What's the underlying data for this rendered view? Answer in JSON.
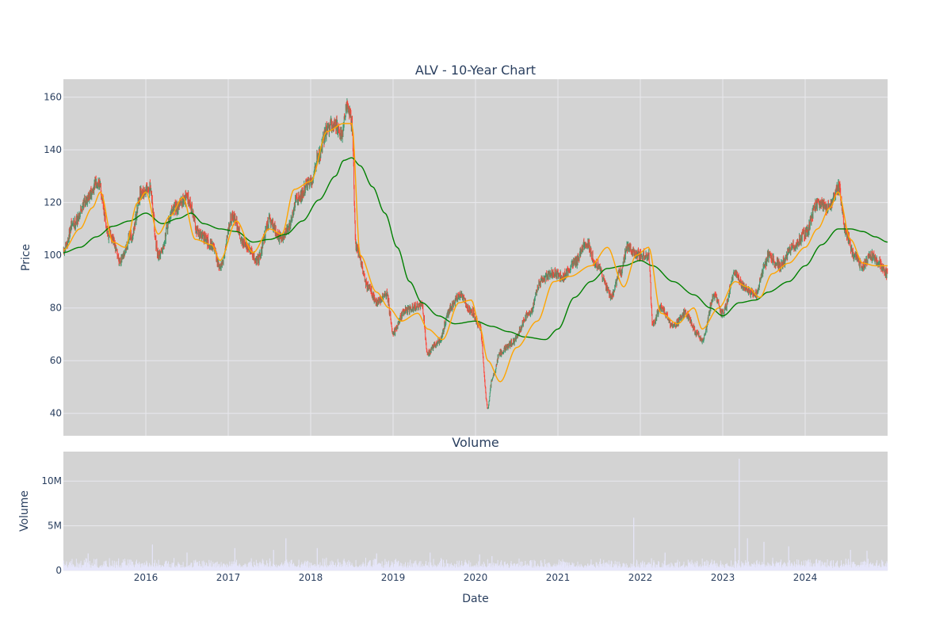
{
  "chart_data": [
    {
      "type": "candlestick",
      "title": "ALV - 10-Year Chart",
      "ylabel": "Price",
      "xlabel": "",
      "ylim": [
        31.5,
        166.8
      ],
      "xlim": [
        2015.0,
        2025.0
      ],
      "yticks": [
        40,
        60,
        80,
        100,
        120,
        140,
        160
      ],
      "x_tick_values": [
        2016,
        2017,
        2018,
        2019,
        2020,
        2021,
        2022,
        2023,
        2024
      ],
      "grid": true,
      "legend": "none",
      "price_anchors": {
        "x": [
          2015.0,
          2015.12,
          2015.3,
          2015.42,
          2015.55,
          2015.7,
          2015.82,
          2015.95,
          2016.05,
          2016.15,
          2016.35,
          2016.5,
          2016.65,
          2016.8,
          2016.9,
          2017.05,
          2017.2,
          2017.35,
          2017.5,
          2017.65,
          2017.72,
          2017.85,
          2018.0,
          2018.1,
          2018.2,
          2018.3,
          2018.38,
          2018.45,
          2018.5,
          2018.55,
          2018.7,
          2018.8,
          2018.92,
          2019.0,
          2019.15,
          2019.35,
          2019.42,
          2019.55,
          2019.7,
          2019.8,
          2019.95,
          2020.05,
          2020.15,
          2020.2,
          2020.3,
          2020.45,
          2020.65,
          2020.8,
          2020.9,
          2021.05,
          2021.2,
          2021.35,
          2021.45,
          2021.65,
          2021.75,
          2021.85,
          2021.95,
          2022.1,
          2022.15,
          2022.25,
          2022.4,
          2022.55,
          2022.7,
          2022.75,
          2022.9,
          2023.0,
          2023.15,
          2023.25,
          2023.4,
          2023.5,
          2023.55,
          2023.7,
          2023.85,
          2024.0,
          2024.15,
          2024.3,
          2024.4,
          2024.5,
          2024.6,
          2024.7,
          2024.8,
          2024.9,
          2025.0
        ],
        "y": [
          101,
          112,
          122,
          128,
          108,
          98,
          107,
          124,
          125,
          100,
          118,
          122,
          108,
          104,
          95,
          115,
          104,
          98,
          113,
          106,
          110,
          122,
          128,
          138,
          148,
          150,
          146,
          157,
          150,
          103,
          88,
          82,
          85,
          71,
          79,
          81,
          63,
          67,
          80,
          85,
          79,
          73,
          42,
          53,
          63,
          67,
          78,
          90,
          93,
          92,
          97,
          105,
          97,
          85,
          93,
          103,
          100,
          100,
          74,
          80,
          73,
          78,
          70,
          68,
          85,
          78,
          93,
          88,
          85,
          95,
          100,
          96,
          103,
          108,
          120,
          118,
          126,
          108,
          99,
          96,
          100,
          97,
          93
        ]
      },
      "ma_short_anchors": {
        "x": [
          2015.0,
          2015.2,
          2015.35,
          2015.45,
          2015.6,
          2015.75,
          2015.9,
          2016.0,
          2016.15,
          2016.3,
          2016.45,
          2016.6,
          2016.8,
          2016.9,
          2017.1,
          2017.3,
          2017.5,
          2017.65,
          2017.8,
          2018.0,
          2018.2,
          2018.4,
          2018.5,
          2018.6,
          2018.8,
          2018.95,
          2019.1,
          2019.3,
          2019.42,
          2019.6,
          2019.8,
          2019.95,
          2020.05,
          2020.15,
          2020.3,
          2020.5,
          2020.75,
          2020.95,
          2021.15,
          2021.4,
          2021.6,
          2021.8,
          2021.95,
          2022.1,
          2022.25,
          2022.45,
          2022.65,
          2022.75,
          2022.95,
          2023.15,
          2023.3,
          2023.45,
          2023.6,
          2023.8,
          2024.0,
          2024.15,
          2024.3,
          2024.4,
          2024.55,
          2024.7,
          2024.85,
          2025.0
        ],
        "y": [
          102,
          110,
          118,
          124,
          105,
          103,
          120,
          124,
          108,
          115,
          122,
          106,
          104,
          98,
          113,
          101,
          110,
          108,
          125,
          128,
          147,
          150,
          150,
          100,
          86,
          80,
          75,
          78,
          72,
          68,
          82,
          83,
          73,
          60,
          52,
          65,
          75,
          90,
          92,
          96,
          103,
          88,
          100,
          103,
          78,
          74,
          80,
          72,
          80,
          90,
          88,
          84,
          93,
          97,
          103,
          110,
          118,
          124,
          106,
          97,
          96,
          96
        ]
      },
      "ma_long_anchors": {
        "x": [
          2015.0,
          2015.2,
          2015.4,
          2015.6,
          2015.8,
          2016.0,
          2016.2,
          2016.4,
          2016.55,
          2016.7,
          2016.9,
          2017.1,
          2017.3,
          2017.5,
          2017.7,
          2017.9,
          2018.1,
          2018.3,
          2018.4,
          2018.5,
          2018.6,
          2018.75,
          2018.9,
          2019.05,
          2019.2,
          2019.35,
          2019.55,
          2019.75,
          2020.0,
          2020.2,
          2020.4,
          2020.6,
          2020.85,
          2021.0,
          2021.2,
          2021.4,
          2021.6,
          2021.8,
          2022.0,
          2022.15,
          2022.4,
          2022.65,
          2022.85,
          2023.0,
          2023.2,
          2023.4,
          2023.55,
          2023.8,
          2024.0,
          2024.2,
          2024.4,
          2024.55,
          2024.7,
          2024.85,
          2025.0
        ],
        "y": [
          101,
          103,
          107,
          111,
          113,
          116,
          112,
          114,
          116,
          112,
          110,
          109,
          105,
          106,
          108,
          113,
          121,
          130,
          136,
          137,
          134,
          126,
          116,
          103,
          90,
          82,
          77,
          74,
          75,
          73,
          71,
          69,
          68,
          72,
          84,
          90,
          95,
          96,
          98,
          96,
          90,
          85,
          80,
          77,
          82,
          83,
          86,
          90,
          96,
          104,
          110,
          110,
          109,
          107,
          105
        ]
      }
    },
    {
      "type": "bar",
      "title": "Volume",
      "ylabel": "Volume",
      "xlabel": "Date",
      "ylim": [
        0,
        13300000
      ],
      "xlim": [
        2015.0,
        2025.0
      ],
      "yticks": [
        0,
        5000000,
        10000000
      ],
      "x_tick_values": [
        2016,
        2017,
        2018,
        2019,
        2020,
        2021,
        2022,
        2023,
        2024
      ],
      "grid": true,
      "legend": "none",
      "volume_spikes": {
        "x": [
          2015.3,
          2016.08,
          2016.5,
          2017.08,
          2017.55,
          2017.7,
          2018.08,
          2018.8,
          2019.45,
          2020.05,
          2020.2,
          2021.92,
          2022.3,
          2023.15,
          2023.2,
          2023.3,
          2023.5,
          2023.8,
          2024.55,
          2024.75
        ],
        "y": [
          1900000,
          2900000,
          2000000,
          2500000,
          2300000,
          3600000,
          2500000,
          1900000,
          2000000,
          1800000,
          1600000,
          5900000,
          2000000,
          2500000,
          12500000,
          3600000,
          3200000,
          2700000,
          2300000,
          2200000
        ]
      }
    }
  ],
  "labels": {
    "price_title": "ALV - 10-Year Chart",
    "price_ylabel": "Price",
    "volume_title": "Volume",
    "volume_ylabel": "Volume",
    "volume_xlabel": "Date",
    "price_yticks": [
      "40",
      "60",
      "80",
      "100",
      "120",
      "140",
      "160"
    ],
    "volume_yticks": [
      "0",
      "5M",
      "10M"
    ],
    "xticks": [
      "2016",
      "2017",
      "2018",
      "2019",
      "2020",
      "2021",
      "2022",
      "2023",
      "2024"
    ]
  },
  "colors": {
    "plot_bg": "#d3d3d3",
    "grid": "#e8e8ee",
    "increasing": "#3d9970",
    "decreasing": "#ff4136",
    "ma_short": "#ffa500",
    "ma_long": "#008000",
    "volume_bar": "#e6e6fa",
    "text": "#2a3f5f"
  }
}
